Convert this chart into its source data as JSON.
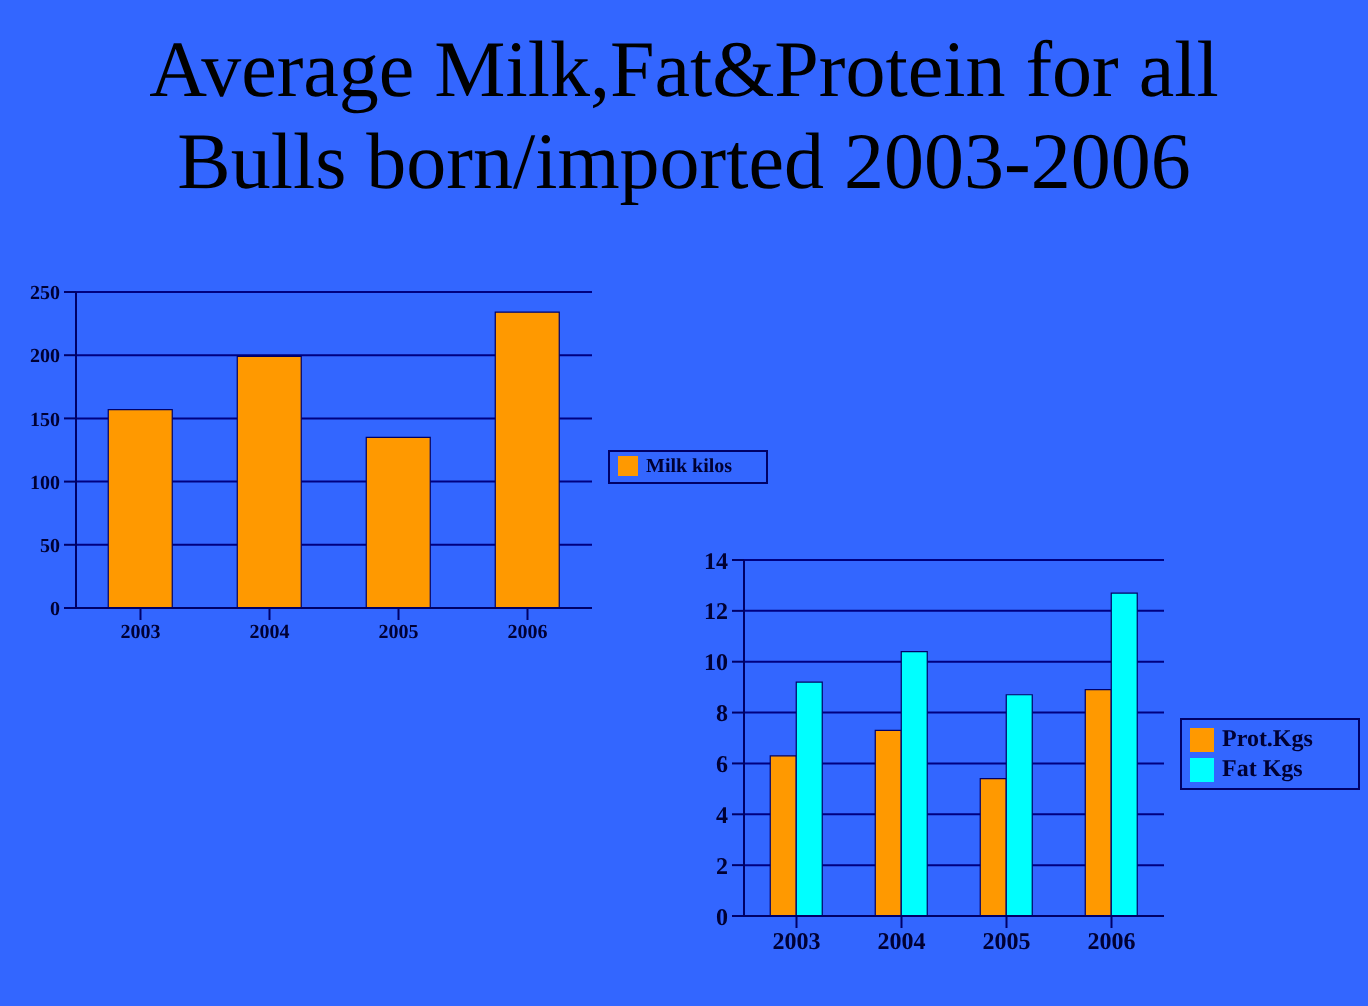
{
  "chart_data": [
    {
      "type": "bar",
      "title": "Average Milk,Fat&Protein for all Bulls born/imported 2003-2006",
      "categories": [
        "2003",
        "2004",
        "2005",
        "2006"
      ],
      "series": [
        {
          "name": "Milk kilos",
          "color": "#ff9900",
          "values": [
            157,
            199,
            135,
            234
          ]
        }
      ],
      "ylim": [
        0,
        250
      ],
      "yticks": [
        0,
        50,
        100,
        150,
        200,
        250
      ],
      "grid": "y",
      "legend": "right"
    },
    {
      "type": "bar",
      "categories": [
        "2003",
        "2004",
        "2005",
        "2006"
      ],
      "series": [
        {
          "name": "Prot.Kgs",
          "color": "#ff9900",
          "values": [
            6.3,
            7.3,
            5.4,
            8.9
          ]
        },
        {
          "name": "Fat Kgs",
          "color": "#00ffff",
          "values": [
            9.2,
            10.4,
            8.7,
            12.7
          ]
        }
      ],
      "ylim": [
        0,
        14
      ],
      "yticks": [
        0,
        2,
        4,
        6,
        8,
        10,
        12,
        14
      ],
      "grid": "y",
      "legend": "right"
    }
  ]
}
